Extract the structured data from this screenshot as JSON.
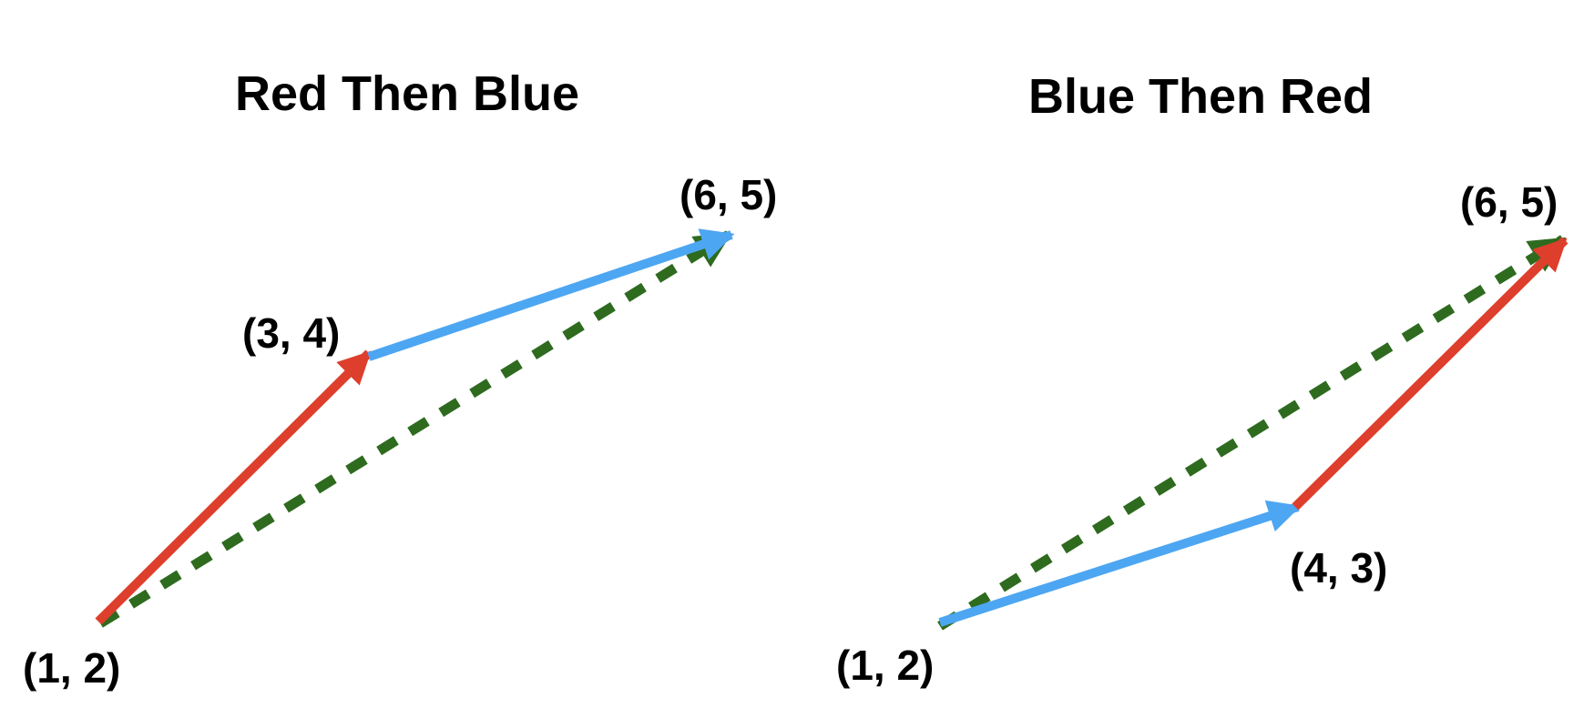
{
  "colors": {
    "red": "#DD3F2C",
    "blue": "#4DA6F2",
    "green": "#2E6B1F",
    "text": "#000000"
  },
  "panels": [
    {
      "title": "Red Then Blue",
      "points": {
        "start": "(1, 2)",
        "mid": "(3, 4)",
        "end": "(6, 5)"
      },
      "first_vector": "red",
      "second_vector": "blue",
      "sum_vector": "green"
    },
    {
      "title": "Blue Then Red",
      "points": {
        "start": "(1, 2)",
        "mid": "(4, 3)",
        "end": "(6, 5)"
      },
      "first_vector": "blue",
      "second_vector": "red",
      "sum_vector": "green"
    }
  ]
}
